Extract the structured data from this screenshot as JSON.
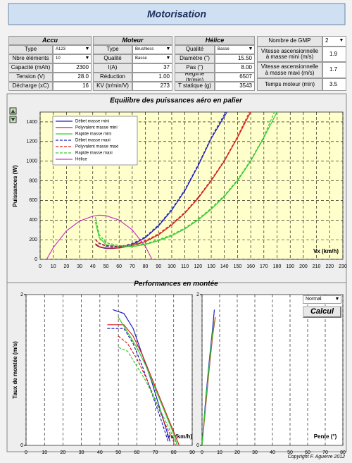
{
  "header": {
    "title": "Motorisation"
  },
  "panels": [
    {
      "title": "Accu",
      "rows": [
        [
          "Type",
          "A123"
        ],
        [
          "Nbre éléments",
          "10"
        ],
        [
          "Capacité (mAh)",
          "2300"
        ],
        [
          "Tension (V)",
          "28.0"
        ],
        [
          "Décharge (xC)",
          "16"
        ]
      ]
    },
    {
      "title": "Moteur",
      "rows": [
        [
          "Type",
          "Brushless"
        ],
        [
          "Qualité",
          "Basse"
        ],
        [
          "I(A)",
          "37"
        ],
        [
          "Réduction",
          "1.00"
        ],
        [
          "KV (tr/min/V)",
          "273"
        ]
      ]
    },
    {
      "title": "Hélice",
      "rows": [
        [
          "Qualité",
          "Basse"
        ],
        [
          "Diamètre (\")",
          "15.50"
        ],
        [
          "Pas (\")",
          "8.00"
        ],
        [
          "Régime (tr/min)",
          "6507"
        ],
        [
          "T statique (g)",
          "3543"
        ]
      ]
    }
  ],
  "summary": {
    "rows": [
      [
        "Nombre de GMP",
        "2"
      ],
      [
        "Vitesse ascensionnelle à masse mini (m/s)",
        "1.9"
      ],
      [
        "Vitesse ascensionnelle à masse maxi (m/s)",
        "1.7"
      ],
      [
        "Temps moteur (min)",
        "3.5"
      ]
    ]
  },
  "controls": {
    "mode": "Normal",
    "button": "Calcul"
  },
  "footer": "Copyright F. Aguerre 2012",
  "chart_data": [
    {
      "type": "line",
      "title": "Equilibre des puissances aéro en palier",
      "x_label": "Vx (km/h)",
      "y_label": "Puissances (W)",
      "xlim": [
        0,
        230
      ],
      "xticks": [
        0,
        10,
        20,
        30,
        40,
        50,
        60,
        70,
        80,
        90,
        100,
        110,
        120,
        130,
        140,
        150,
        160,
        170,
        180,
        190,
        200,
        210,
        220,
        230
      ],
      "ylim": [
        0,
        1500
      ],
      "yticks": [
        0,
        200,
        400,
        600,
        800,
        1000,
        1200,
        1400
      ],
      "grid": "both",
      "legend": "upper left",
      "background": "#ffffcc",
      "series": [
        {
          "name": "Débet masse mini",
          "color": "#1f1fbf",
          "dash": "solid",
          "x": [
            42,
            45,
            50,
            55,
            60,
            70,
            80,
            90,
            100,
            110,
            120,
            130,
            142
          ],
          "values": [
            150,
            125,
            110,
            110,
            118,
            150,
            220,
            340,
            500,
            700,
            950,
            1230,
            1500
          ]
        },
        {
          "name": "Polyvalent masse mini",
          "color": "#d42020",
          "dash": "solid",
          "x": [
            42,
            45,
            50,
            60,
            70,
            80,
            90,
            100,
            110,
            120,
            130,
            140,
            150,
            160
          ],
          "values": [
            160,
            130,
            115,
            115,
            140,
            180,
            250,
            350,
            470,
            620,
            800,
            1000,
            1240,
            1500
          ]
        },
        {
          "name": "Rapide masse mini",
          "color": "#33cc33",
          "dash": "solid",
          "x": [
            42,
            45,
            50,
            60,
            70,
            80,
            90,
            100,
            110,
            120,
            130,
            140,
            150,
            160,
            170,
            180
          ],
          "values": [
            380,
            220,
            150,
            130,
            130,
            150,
            190,
            240,
            310,
            400,
            510,
            640,
            800,
            1000,
            1240,
            1500
          ]
        },
        {
          "name": "Débet masse maxi",
          "color": "#1f1fbf",
          "dash": "dashed",
          "x": [
            42,
            45,
            50,
            55,
            60,
            70,
            80,
            90,
            100,
            110,
            120,
            130,
            141
          ],
          "values": [
            200,
            160,
            135,
            125,
            128,
            160,
            230,
            350,
            510,
            710,
            960,
            1240,
            1500
          ]
        },
        {
          "name": "Polyvalent masse maxi",
          "color": "#d42020",
          "dash": "dashed",
          "x": [
            42,
            45,
            50,
            60,
            70,
            80,
            90,
            100,
            110,
            120,
            130,
            140,
            150,
            159
          ],
          "values": [
            200,
            165,
            140,
            130,
            150,
            190,
            260,
            360,
            480,
            630,
            810,
            1010,
            1250,
            1500
          ]
        },
        {
          "name": "Rapide masse maxi",
          "color": "#33cc33",
          "dash": "dashed",
          "x": [
            42,
            45,
            50,
            60,
            70,
            80,
            90,
            100,
            110,
            120,
            130,
            140,
            150,
            160,
            170,
            178
          ],
          "values": [
            430,
            250,
            170,
            140,
            140,
            160,
            200,
            250,
            320,
            410,
            520,
            650,
            810,
            1010,
            1250,
            1500
          ]
        },
        {
          "name": "Hélice",
          "color": "#cc33cc",
          "dash": "solid",
          "x": [
            5,
            10,
            20,
            30,
            40,
            45,
            50,
            60,
            70,
            80,
            85
          ],
          "values": [
            0,
            120,
            290,
            390,
            440,
            450,
            445,
            400,
            300,
            130,
            0
          ]
        }
      ]
    },
    {
      "type": "line",
      "title": "Performances en montée",
      "x_label": "Vx (km/h)",
      "y_label": "Taux de montée (m/s)",
      "xlim": [
        0,
        90
      ],
      "xticks": [
        0,
        10,
        20,
        30,
        40,
        50,
        60,
        70,
        80,
        90
      ],
      "ylim": [
        0,
        2
      ],
      "yticks": [
        0,
        2
      ],
      "grid": "x",
      "background": "#ffffff",
      "series": [
        {
          "color": "#1f1fbf",
          "dash": "solid",
          "x": [
            47,
            53,
            58,
            63,
            68,
            73,
            78
          ],
          "values": [
            1.8,
            1.75,
            1.55,
            1.2,
            0.85,
            0.45,
            0.05
          ]
        },
        {
          "color": "#d42020",
          "dash": "solid",
          "x": [
            44,
            53,
            58,
            63,
            68,
            73,
            78,
            83
          ],
          "values": [
            1.6,
            1.6,
            1.45,
            1.2,
            0.9,
            0.6,
            0.3,
            0
          ]
        },
        {
          "color": "#33cc33",
          "dash": "solid",
          "x": [
            50,
            55,
            60,
            65,
            70,
            75,
            80,
            82
          ],
          "values": [
            1.7,
            1.5,
            1.3,
            1.05,
            0.75,
            0.45,
            0.15,
            0
          ]
        },
        {
          "color": "#1f1fbf",
          "dash": "dashed",
          "x": [
            44,
            53,
            58,
            63,
            68,
            73,
            77
          ],
          "values": [
            1.55,
            1.55,
            1.35,
            1.05,
            0.7,
            0.35,
            0.05
          ]
        },
        {
          "color": "#d42020",
          "dash": "dashed",
          "x": [
            50,
            55,
            60,
            65,
            70,
            75,
            81
          ],
          "values": [
            1.45,
            1.35,
            1.15,
            0.9,
            0.6,
            0.3,
            0
          ]
        },
        {
          "color": "#33cc33",
          "dash": "dashed",
          "x": [
            50,
            55,
            60,
            65,
            70,
            75,
            80,
            82
          ],
          "values": [
            1.3,
            1.25,
            1.05,
            0.85,
            0.6,
            0.35,
            0.1,
            0
          ]
        }
      ]
    },
    {
      "type": "line",
      "x_label": "Pente (°)",
      "xlim": [
        0,
        80
      ],
      "xticks": [
        0,
        10,
        20,
        30,
        40,
        50,
        60,
        70,
        80
      ],
      "ylim": [
        0,
        2
      ],
      "yticks": [
        0,
        2
      ],
      "grid": "x",
      "background": "#ffffff",
      "series": [
        {
          "color": "#1f1fbf",
          "dash": "solid",
          "x": [
            0,
            2,
            4,
            6,
            7
          ],
          "values": [
            0,
            0.6,
            1.1,
            1.55,
            1.8
          ]
        },
        {
          "color": "#d42020",
          "dash": "solid",
          "x": [
            0,
            2,
            4,
            6,
            7.5
          ],
          "values": [
            0,
            0.5,
            1.0,
            1.45,
            1.7
          ]
        },
        {
          "color": "#33cc33",
          "dash": "solid",
          "x": [
            0,
            2,
            4,
            6,
            7
          ],
          "values": [
            0,
            0.55,
            1.05,
            1.5,
            1.65
          ]
        }
      ]
    }
  ]
}
